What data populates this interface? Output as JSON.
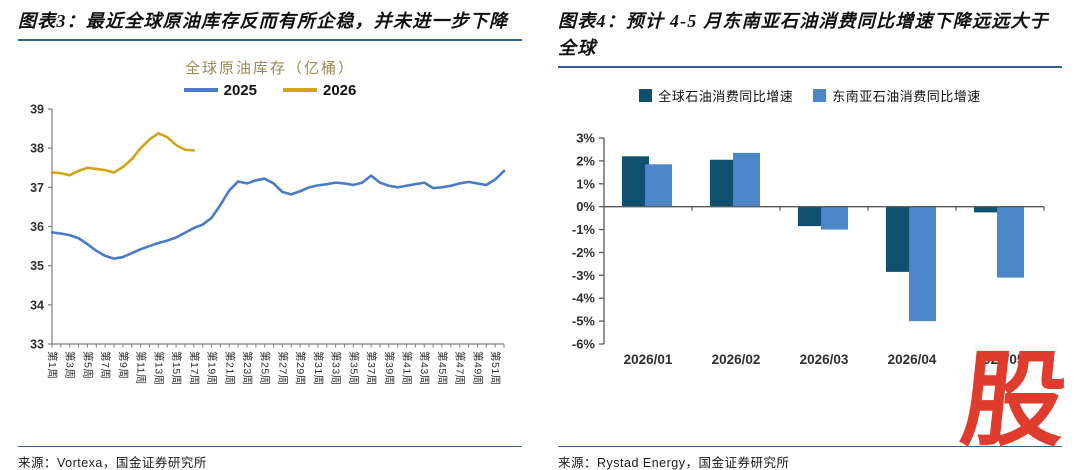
{
  "figure3": {
    "heading": "图表3：最近全球原油库存反而有所企稳，并未进一步下降",
    "source": "来源：Vortexa，国金证券研究所"
  },
  "figure4": {
    "heading": "图表4：预计 4-5 月东南亚石油消费同比增速下降远远大于全球",
    "source": "来源：Rystad Energy，国金证券研究所"
  },
  "watermark": {
    "text": "股",
    "color": "#e03c2d"
  },
  "colors": {
    "rule_blue": "#33638c",
    "axis_gray": "#7f7f7f",
    "axis_dark": "#595959",
    "tick_text": "#303030",
    "title_gold": "#9d8b55"
  },
  "chart_data": [
    {
      "type": "line",
      "title": "全球原油库存（亿桶）",
      "ylabel": "",
      "xlabel": "",
      "ylim": [
        33,
        39
      ],
      "y_ticks": [
        39,
        38,
        37,
        36,
        35,
        34,
        33
      ],
      "x_weeks": 52,
      "x_tick_labels": [
        "第1周",
        "第3周",
        "第5周",
        "第7周",
        "第9周",
        "第11周",
        "第13周",
        "第15周",
        "第17周",
        "第19周",
        "第21周",
        "第23周",
        "第25周",
        "第27周",
        "第29周",
        "第31周",
        "第33周",
        "第35周",
        "第37周",
        "第39周",
        "第41周",
        "第43周",
        "第45周",
        "第47周",
        "第49周",
        "第51周"
      ],
      "series": [
        {
          "name": "2025",
          "color": "#4a7bc8",
          "values": [
            35.85,
            35.82,
            35.78,
            35.7,
            35.55,
            35.38,
            35.25,
            35.18,
            35.22,
            35.32,
            35.42,
            35.5,
            35.58,
            35.64,
            35.72,
            35.84,
            35.96,
            36.05,
            36.22,
            36.55,
            36.92,
            37.15,
            37.1,
            37.18,
            37.22,
            37.1,
            36.88,
            36.82,
            36.9,
            37.0,
            37.05,
            37.08,
            37.12,
            37.1,
            37.06,
            37.12,
            37.3,
            37.12,
            37.04,
            37.0,
            37.04,
            37.08,
            37.12,
            36.98,
            37.0,
            37.04,
            37.1,
            37.14,
            37.1,
            37.06,
            37.2,
            37.42
          ]
        },
        {
          "name": "2026",
          "color": "#d2a41a",
          "values": [
            37.38,
            37.36,
            37.31,
            37.42,
            37.5,
            37.47,
            37.44,
            37.38,
            37.52,
            37.72,
            38.0,
            38.22,
            38.38,
            38.28,
            38.08,
            37.96,
            37.94
          ]
        }
      ]
    },
    {
      "type": "bar",
      "title": "",
      "categories": [
        "2026/01",
        "2026/02",
        "2026/03",
        "2026/04",
        "2026/05"
      ],
      "ylim": [
        -6,
        3
      ],
      "y_ticks": [
        3,
        2,
        1,
        0,
        -1,
        -2,
        -3,
        -4,
        -5,
        -6
      ],
      "y_tick_labels": [
        "3%",
        "2%",
        "1%",
        "0%",
        "-1%",
        "-2%",
        "-3%",
        "-4%",
        "-5%",
        "-6%"
      ],
      "series": [
        {
          "name": "全球石油消费同比增速",
          "color": "#10506f",
          "values": [
            2.2,
            2.05,
            -0.85,
            -2.85,
            -0.25
          ]
        },
        {
          "name": "东南亚石油消费同比增速",
          "color": "#4a86c8",
          "values": [
            1.85,
            2.35,
            -1.0,
            -5.0,
            -3.1
          ]
        }
      ]
    }
  ]
}
